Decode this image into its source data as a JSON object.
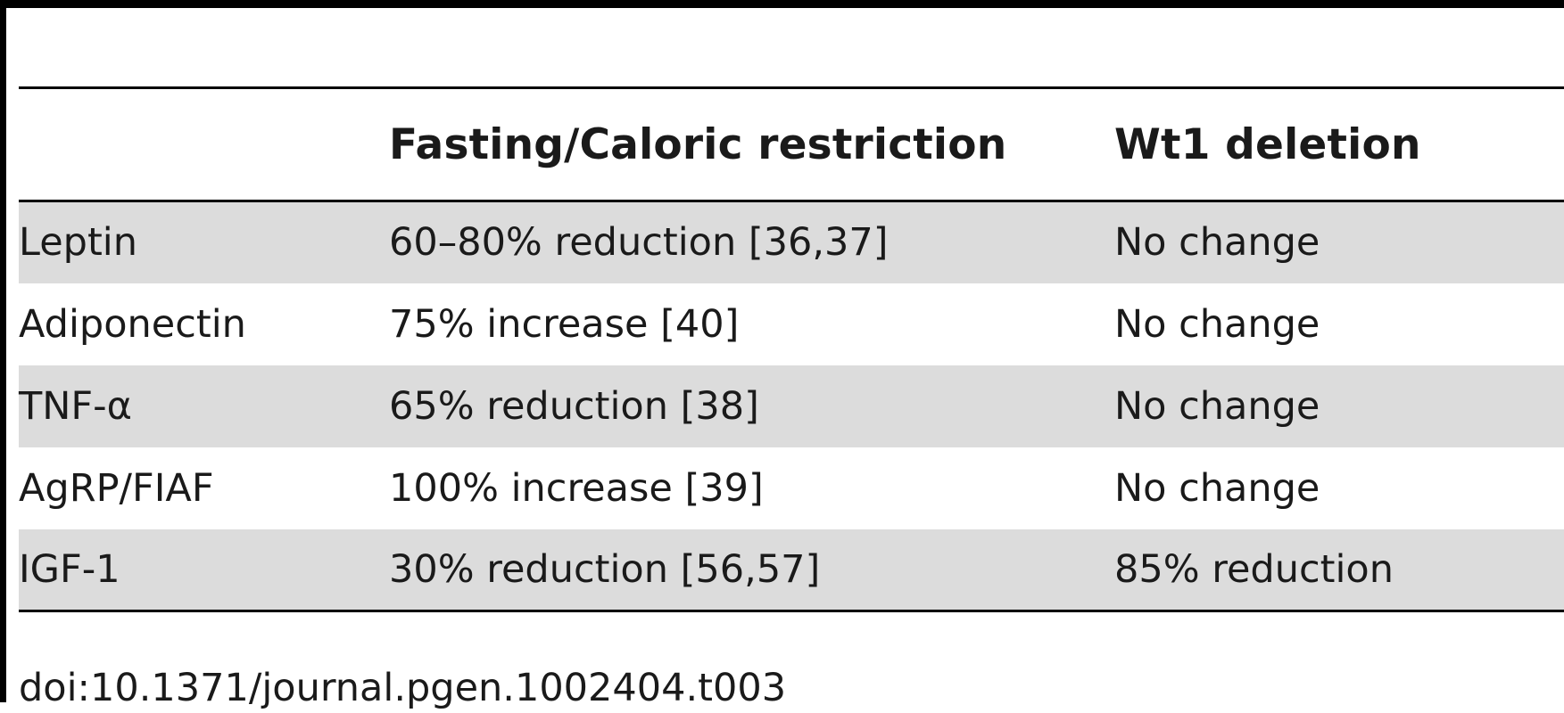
{
  "table": {
    "headers": [
      "",
      "Fasting/Caloric restriction",
      "Wt1 deletion"
    ],
    "rows": [
      {
        "label": "Leptin",
        "fasting": "60–80% reduction [36,37]",
        "wt1": "No change",
        "shaded": true
      },
      {
        "label": "Adiponectin",
        "fasting": "75% increase [40]",
        "wt1": "No change",
        "shaded": false
      },
      {
        "label": "TNF-α",
        "fasting": "65% reduction [38]",
        "wt1": "No change",
        "shaded": true
      },
      {
        "label": "AgRP/FIAF",
        "fasting": "100% increase [39]",
        "wt1": "No change",
        "shaded": false
      },
      {
        "label": "IGF-1",
        "fasting": "30% reduction [56,57]",
        "wt1": "85% reduction",
        "shaded": true
      }
    ]
  },
  "footer": {
    "doi": "doi:10.1371/journal.pgen.1002404.t003"
  },
  "colors": {
    "rule": "#000000",
    "row_shade": "#dcdcdc",
    "text": "#1a1a1a"
  }
}
